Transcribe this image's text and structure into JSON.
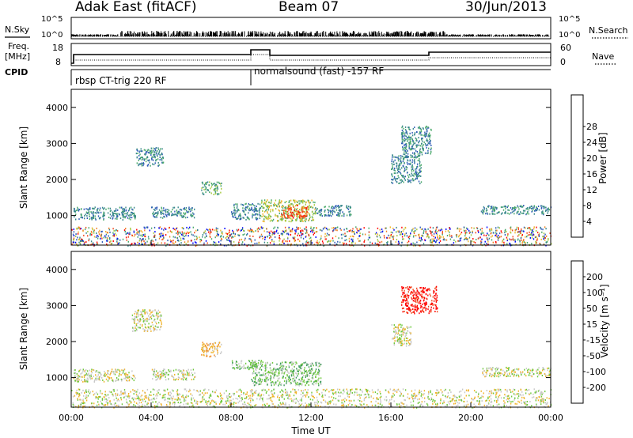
{
  "header": {
    "station": "Adak East (fitACF)",
    "beam": "Beam 07",
    "date": "30/Jun/2013"
  },
  "top_panels": {
    "nsky_label": "N.Sky",
    "nsky_ticks": [
      "10^5",
      "10^0"
    ],
    "nsearch_label": "N.Search",
    "freq_label": "Freq.",
    "freq_unit": "[MHz]",
    "freq_ticks": [
      "18",
      "8"
    ],
    "nave_label": "Nave",
    "nave_ticks": [
      "60",
      "0"
    ],
    "cpid_label": "CPID",
    "cpid_segments": [
      "rbsp CT-trig 220 RF",
      "normalsound (fast) -157 RF"
    ]
  },
  "colors": {
    "power": [
      "#0000ff",
      "#2e5bb7",
      "#39888c",
      "#4aa96a",
      "#a5c93e",
      "#f0b42a",
      "#f08024",
      "#f04a1e",
      "#ff0000"
    ],
    "velocity": [
      "#ff0000",
      "#f04a1e",
      "#f08c24",
      "#f0b42a",
      "#c8c8c8",
      "#6ec83c",
      "#3c9a5a",
      "#2e7fb0",
      "#1e3cc8"
    ]
  },
  "chart_data": [
    {
      "type": "heatmap",
      "name": "power",
      "ylabel": "Slant Range [km]",
      "ylim": [
        180,
        4500
      ],
      "yticks": [
        1000,
        2000,
        3000,
        4000
      ],
      "xticks": [
        "00:00",
        "04:00",
        "08:00",
        "12:00",
        "16:00",
        "20:00",
        "00:00"
      ],
      "xlim_hours": [
        0,
        24
      ],
      "colorbar_label": "Power [dB]",
      "colorbar_ticks": [
        "4",
        "8",
        "12",
        "16",
        "20",
        "24",
        "28"
      ],
      "scatter_regions": [
        {
          "t": [
            0.1,
            3.2
          ],
          "r": [
            900,
            1250
          ],
          "level": 2
        },
        {
          "t": [
            4.0,
            6.2
          ],
          "r": [
            950,
            1250
          ],
          "level": 2
        },
        {
          "t": [
            8.0,
            9.5
          ],
          "r": [
            900,
            1350
          ],
          "level": 2
        },
        {
          "t": [
            9.5,
            12.2
          ],
          "r": [
            850,
            1450
          ],
          "level": 4
        },
        {
          "t": [
            10.5,
            11.8
          ],
          "r": [
            950,
            1300
          ],
          "level": 7
        },
        {
          "t": [
            12.2,
            14.0
          ],
          "r": [
            1000,
            1300
          ],
          "level": 2
        },
        {
          "t": [
            20.5,
            24.0
          ],
          "r": [
            1050,
            1300
          ],
          "level": 2
        },
        {
          "t": [
            3.2,
            4.6
          ],
          "r": [
            2400,
            2900
          ],
          "level": 2
        },
        {
          "t": [
            6.5,
            7.5
          ],
          "r": [
            1600,
            1950
          ],
          "level": 3
        },
        {
          "t": [
            16.0,
            17.5
          ],
          "r": [
            1900,
            2700
          ],
          "level": 2
        },
        {
          "t": [
            16.5,
            18.0
          ],
          "r": [
            2700,
            3500
          ],
          "level": 2
        },
        {
          "t": [
            0.0,
            24.0
          ],
          "r": [
            180,
            700
          ],
          "level": 3
        }
      ]
    },
    {
      "type": "heatmap",
      "name": "velocity",
      "ylabel": "Slant Range [km]",
      "ylim": [
        180,
        4500
      ],
      "yticks": [
        1000,
        2000,
        3000,
        4000
      ],
      "xticks": [
        "00:00",
        "04:00",
        "08:00",
        "12:00",
        "16:00",
        "20:00",
        "00:00"
      ],
      "xlim_hours": [
        0,
        24
      ],
      "xlabel": "Time UT",
      "colorbar_label": "Velocity [m s⁻¹]",
      "colorbar_ticks": [
        "-200",
        "-100",
        "-50",
        "-15",
        "15",
        "50",
        "100",
        "200"
      ],
      "scatter_regions": [
        {
          "t": [
            0.1,
            3.2
          ],
          "r": [
            900,
            1250
          ],
          "level": 4
        },
        {
          "t": [
            4.0,
            6.2
          ],
          "r": [
            950,
            1250
          ],
          "level": 4
        },
        {
          "t": [
            9.0,
            12.5
          ],
          "r": [
            800,
            1450
          ],
          "level": 5
        },
        {
          "t": [
            8.0,
            9.5
          ],
          "r": [
            1250,
            1500
          ],
          "level": 5
        },
        {
          "t": [
            20.5,
            24.0
          ],
          "r": [
            1050,
            1300
          ],
          "level": 4
        },
        {
          "t": [
            3.0,
            4.5
          ],
          "r": [
            2300,
            2900
          ],
          "level": 4
        },
        {
          "t": [
            16.5,
            18.3
          ],
          "r": [
            2800,
            3550
          ],
          "level": 0
        },
        {
          "t": [
            16.0,
            17.0
          ],
          "r": [
            1900,
            2500
          ],
          "level": 4
        },
        {
          "t": [
            6.5,
            7.5
          ],
          "r": [
            1600,
            2000
          ],
          "level": 3
        },
        {
          "t": [
            0.0,
            24.0
          ],
          "r": [
            180,
            700
          ],
          "level": 4
        }
      ]
    }
  ]
}
